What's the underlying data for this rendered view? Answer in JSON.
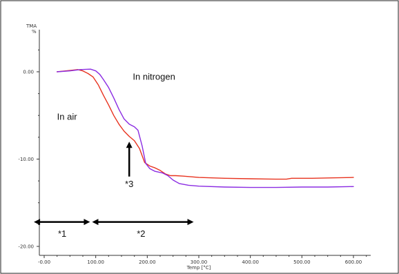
{
  "chart_data": {
    "type": "line",
    "ylabel_top": "TMA",
    "ylabel_unit": "%",
    "xlabel": "Temp  [°C]",
    "xlim": [
      -20,
      600
    ],
    "ylim": [
      -20,
      4
    ],
    "x_ticks": [
      {
        "v": 0,
        "label": "-0.00"
      },
      {
        "v": 100,
        "label": "100.00"
      },
      {
        "v": 200,
        "label": "200.00"
      },
      {
        "v": 300,
        "label": "300.00"
      },
      {
        "v": 400,
        "label": "400.00"
      },
      {
        "v": 500,
        "label": "500.00"
      },
      {
        "v": 600,
        "label": "600.00"
      }
    ],
    "y_ticks": [
      {
        "v": 0,
        "label": "0.00"
      },
      {
        "v": -10,
        "label": "-10.00"
      },
      {
        "v": -20,
        "label": "-20.00"
      }
    ],
    "series": [
      {
        "name": "In air",
        "color": "#e8321e",
        "points": [
          [
            25,
            0
          ],
          [
            50,
            0.15
          ],
          [
            65,
            0.25
          ],
          [
            75,
            0.1
          ],
          [
            85,
            -0.2
          ],
          [
            95,
            -0.6
          ],
          [
            105,
            -1.5
          ],
          [
            115,
            -2.7
          ],
          [
            125,
            -3.8
          ],
          [
            135,
            -5.0
          ],
          [
            145,
            -6.0
          ],
          [
            155,
            -6.8
          ],
          [
            165,
            -7.4
          ],
          [
            175,
            -7.9
          ],
          [
            185,
            -8.8
          ],
          [
            195,
            -10.4
          ],
          [
            205,
            -10.8
          ],
          [
            215,
            -11.0
          ],
          [
            225,
            -11.3
          ],
          [
            235,
            -11.7
          ],
          [
            245,
            -11.9
          ],
          [
            255,
            -11.9
          ],
          [
            270,
            -11.95
          ],
          [
            300,
            -12.1
          ],
          [
            350,
            -12.2
          ],
          [
            400,
            -12.25
          ],
          [
            450,
            -12.3
          ],
          [
            470,
            -12.3
          ],
          [
            480,
            -12.2
          ],
          [
            520,
            -12.2
          ],
          [
            560,
            -12.15
          ],
          [
            600,
            -12.1
          ]
        ]
      },
      {
        "name": "In nitrogen",
        "color": "#8a2be2",
        "points": [
          [
            25,
            0
          ],
          [
            50,
            0.1
          ],
          [
            70,
            0.25
          ],
          [
            90,
            0.3
          ],
          [
            100,
            0.1
          ],
          [
            108,
            -0.3
          ],
          [
            115,
            -0.9
          ],
          [
            125,
            -1.8
          ],
          [
            135,
            -3.0
          ],
          [
            145,
            -4.3
          ],
          [
            155,
            -5.4
          ],
          [
            165,
            -6.0
          ],
          [
            175,
            -6.3
          ],
          [
            182,
            -6.7
          ],
          [
            190,
            -8.5
          ],
          [
            197,
            -10.5
          ],
          [
            205,
            -11.1
          ],
          [
            215,
            -11.4
          ],
          [
            230,
            -11.6
          ],
          [
            240,
            -11.9
          ],
          [
            250,
            -12.4
          ],
          [
            262,
            -12.8
          ],
          [
            280,
            -13.0
          ],
          [
            300,
            -13.1
          ],
          [
            350,
            -13.2
          ],
          [
            400,
            -13.25
          ],
          [
            450,
            -13.25
          ],
          [
            500,
            -13.2
          ],
          [
            550,
            -13.2
          ],
          [
            600,
            -13.15
          ]
        ]
      }
    ],
    "annotations": {
      "in_air_label": "In air",
      "in_nitrogen_label": "In nitrogen",
      "mark_1": "*1",
      "mark_2": "*2",
      "mark_3": "*3"
    },
    "ranges": [
      {
        "name": "range-1",
        "from": -20,
        "to": 90,
        "y": -17.2
      },
      {
        "name": "range-2",
        "from": 90,
        "to": 290,
        "y": -17.2
      }
    ],
    "pointer_arrow": {
      "x": 165,
      "y_from": -12.0,
      "y_to": -8.0
    }
  }
}
